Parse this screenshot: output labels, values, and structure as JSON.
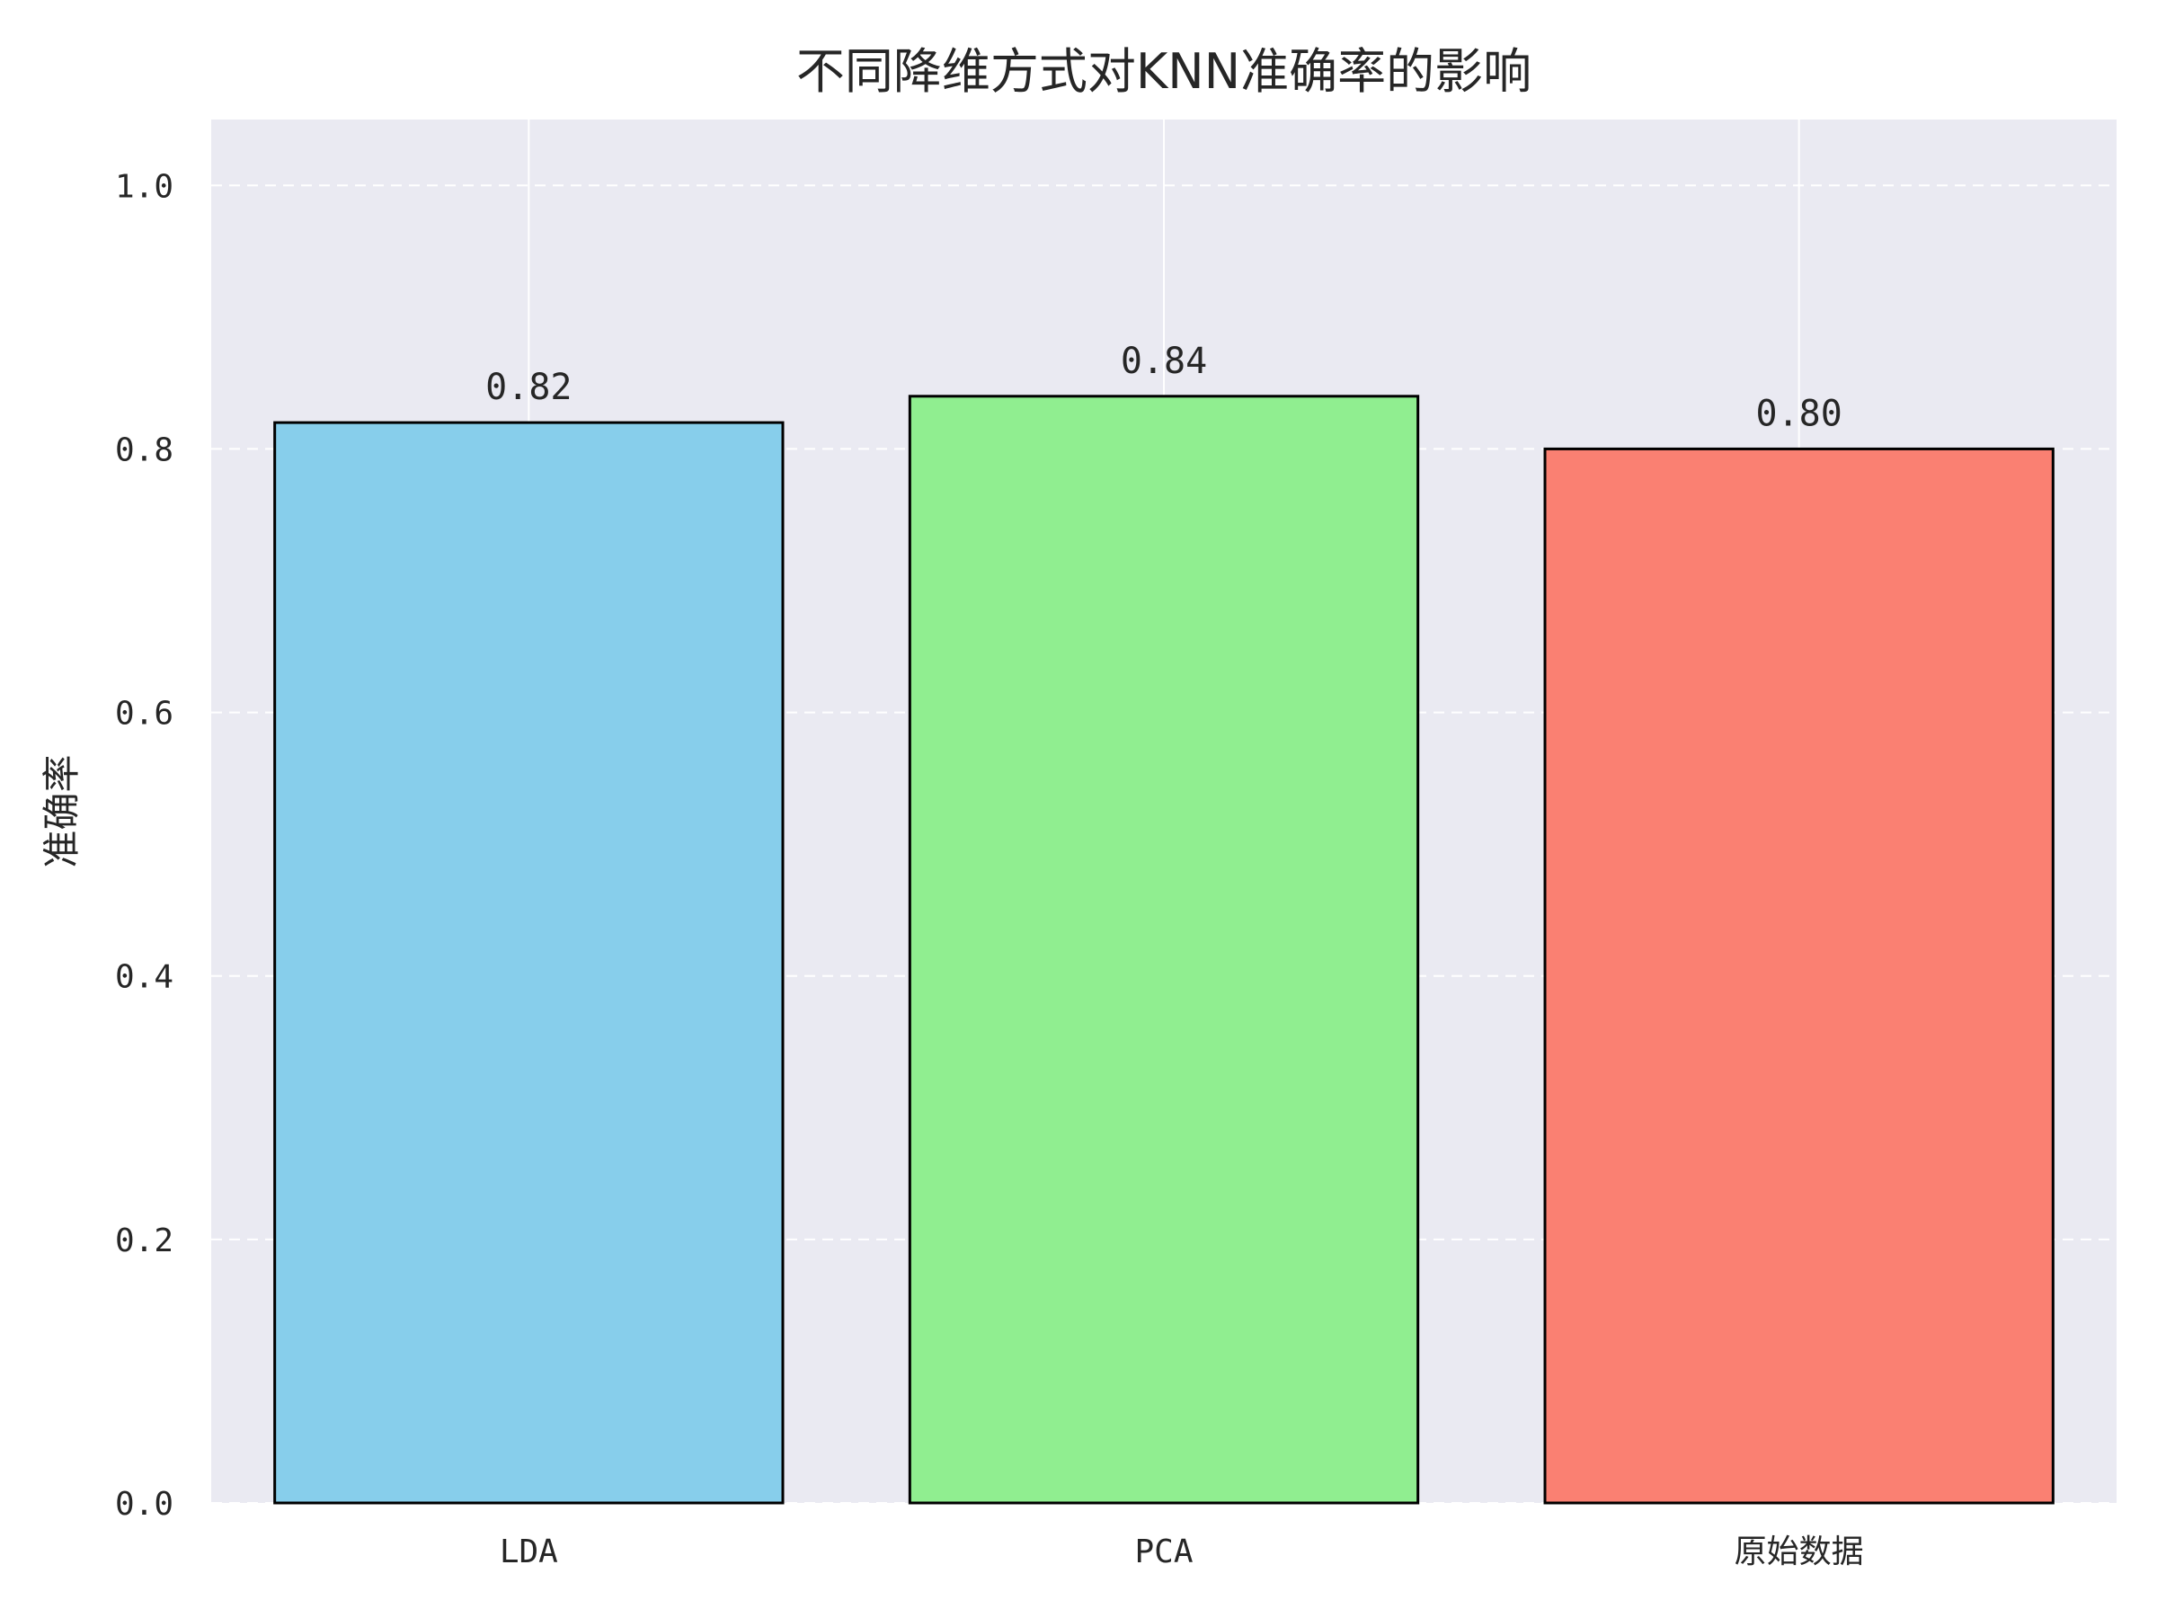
{
  "chart_data": {
    "type": "bar",
    "title": "不同降维方式对KNN准确率的影响",
    "xlabel": "",
    "ylabel": "准确率",
    "categories": [
      "LDA",
      "PCA",
      "原始数据"
    ],
    "values": [
      0.82,
      0.84,
      0.8
    ],
    "value_labels": [
      "0.82",
      "0.84",
      "0.80"
    ],
    "colors": [
      "#87CEEB",
      "#90EE90",
      "#FA8072"
    ],
    "bar_edge_color": "#000000",
    "ylim": [
      0,
      1.05
    ],
    "yticks": [
      0.0,
      0.2,
      0.4,
      0.6,
      0.8,
      1.0
    ],
    "ytick_labels": [
      "0.0",
      "0.2",
      "0.4",
      "0.6",
      "0.8",
      "1.0"
    ],
    "grid": true,
    "grid_style": "dashed horizontal, solid vertical",
    "legend": "none",
    "background_color": "#EAEAF2"
  }
}
